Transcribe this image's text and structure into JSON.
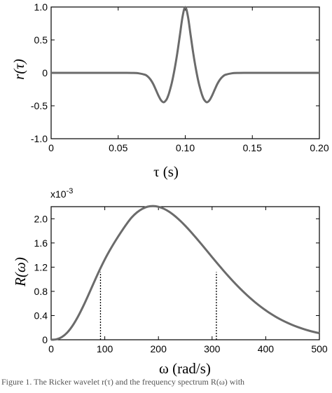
{
  "chart_data": [
    {
      "type": "line",
      "series": [
        {
          "x": [
            0,
            0.005,
            0.01,
            0.015,
            0.02,
            0.025,
            0.03,
            0.035,
            0.04,
            0.045,
            0.05,
            0.055,
            0.06,
            0.065,
            0.07,
            0.072,
            0.074,
            0.076,
            0.078,
            0.08,
            0.082,
            0.084,
            0.086,
            0.087,
            0.088,
            0.09,
            0.092,
            0.094,
            0.096,
            0.098,
            0.1,
            0.102,
            0.104,
            0.106,
            0.108,
            0.11,
            0.112,
            0.113,
            0.114,
            0.116,
            0.118,
            0.12,
            0.122,
            0.124,
            0.126,
            0.128,
            0.13,
            0.135,
            0.14,
            0.145,
            0.15,
            0.155,
            0.16,
            0.165,
            0.17,
            0.175,
            0.18,
            0.185,
            0.19,
            0.195,
            0.2
          ],
          "y": [
            0,
            0,
            0,
            0,
            0,
            0,
            0,
            0,
            0,
            0,
            0,
            0,
            -0.001,
            -0.006,
            -0.029,
            -0.055,
            -0.099,
            -0.165,
            -0.253,
            -0.345,
            -0.418,
            -0.446,
            -0.406,
            -0.361,
            -0.302,
            -0.15,
            0.051,
            0.292,
            0.573,
            0.855,
            1.0,
            0.855,
            0.573,
            0.292,
            0.051,
            -0.15,
            -0.302,
            -0.361,
            -0.406,
            -0.446,
            -0.418,
            -0.345,
            -0.253,
            -0.165,
            -0.099,
            -0.055,
            -0.029,
            -0.006,
            -0.001,
            0,
            0,
            0,
            0,
            0,
            0,
            0,
            0,
            0,
            0,
            0,
            0
          ]
        }
      ],
      "ylabel": "r(τ)",
      "xlabel": "τ (s)",
      "xlim": [
        0,
        0.2
      ],
      "ylim": [
        -1.0,
        1.0
      ],
      "xticks": [
        "0",
        "0.05",
        "0.10",
        "0.15",
        "0.20"
      ],
      "yticks": [
        "-1.0",
        "-0.5",
        "0",
        "0.5",
        "1.0"
      ],
      "grid": false,
      "line_color": "#6b6b6b"
    },
    {
      "type": "line",
      "series": [
        {
          "x": [
            0,
            10,
            20,
            30,
            40,
            50,
            60,
            70,
            80,
            90,
            100,
            110,
            120,
            130,
            140,
            150,
            160,
            170,
            180,
            190,
            200,
            210,
            220,
            230,
            240,
            250,
            260,
            270,
            280,
            290,
            300,
            310,
            320,
            330,
            340,
            350,
            360,
            370,
            380,
            390,
            400,
            410,
            420,
            430,
            440,
            450,
            460,
            470,
            480,
            490,
            500
          ],
          "y": [
            0,
            0.008,
            0.045,
            0.119,
            0.233,
            0.382,
            0.558,
            0.751,
            0.951,
            1.146,
            1.327,
            1.489,
            1.637,
            1.775,
            1.905,
            2.02,
            2.105,
            2.165,
            2.2,
            2.21,
            2.198,
            2.166,
            2.116,
            2.05,
            1.972,
            1.884,
            1.788,
            1.686,
            1.581,
            1.474,
            1.366,
            1.26,
            1.156,
            1.055,
            0.958,
            0.866,
            0.779,
            0.697,
            0.621,
            0.551,
            0.486,
            0.427,
            0.373,
            0.325,
            0.282,
            0.243,
            0.209,
            0.179,
            0.152,
            0.129,
            0.109
          ]
        }
      ],
      "exponent_label": "x10",
      "exponent_power": "-3",
      "ylabel": "R(ω)",
      "xlabel": "ω (rad/s)",
      "xlim": [
        0,
        500
      ],
      "ylim": [
        0,
        2.2
      ],
      "xticks": [
        "0",
        "100",
        "200",
        "300",
        "400",
        "500"
      ],
      "yticks": [
        "0",
        "0.4",
        "0.8",
        "1.2",
        "1.6",
        "2.0"
      ],
      "markers": [
        {
          "x": 92,
          "y": 1.12
        },
        {
          "x": 308,
          "y": 1.12
        }
      ],
      "grid": false,
      "line_color": "#6b6b6b"
    }
  ],
  "caption": "Figure 1. The Ricker wavelet r(τ) and the frequency spectrum R(ω) with"
}
